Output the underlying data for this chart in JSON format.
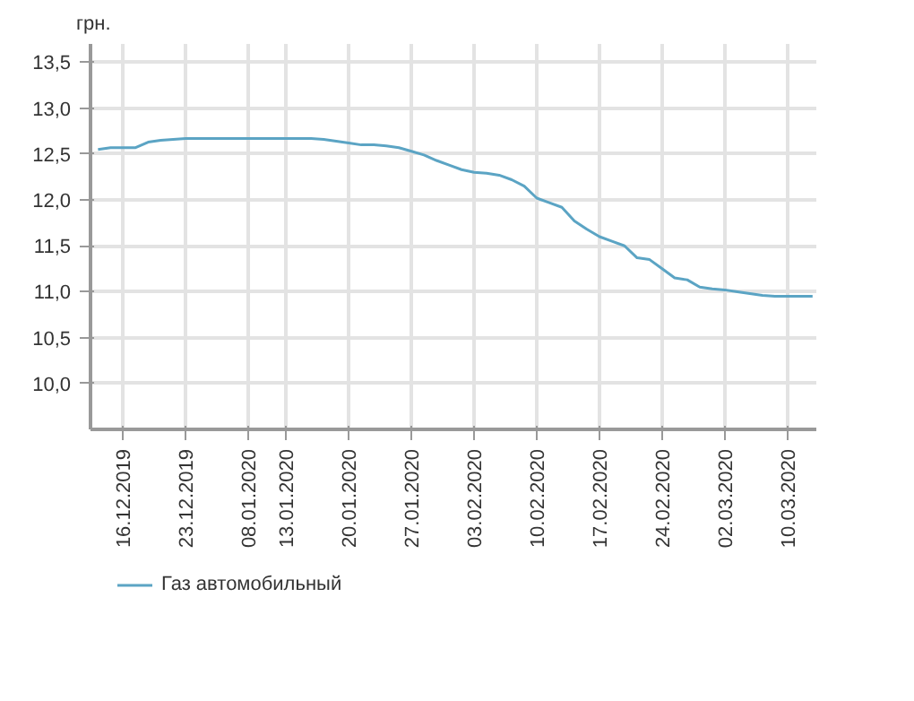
{
  "chart_data": {
    "type": "line",
    "ylabel": "грн.",
    "categories": [
      null,
      null,
      "16.12.2019",
      null,
      null,
      null,
      null,
      "23.12.2019",
      null,
      null,
      null,
      null,
      "08.01.2020",
      null,
      null,
      "13.01.2020",
      null,
      null,
      null,
      null,
      "20.01.2020",
      null,
      null,
      null,
      null,
      "27.01.2020",
      null,
      null,
      null,
      null,
      "03.02.2020",
      null,
      null,
      null,
      null,
      "10.02.2020",
      null,
      null,
      null,
      null,
      "17.02.2020",
      null,
      null,
      null,
      null,
      "24.02.2020",
      null,
      null,
      null,
      null,
      "02.03.2020",
      null,
      null,
      null,
      null,
      "10.03.2020",
      null,
      null
    ],
    "series": [
      {
        "name": "Газ автомобильный",
        "color": "#5ba4c4",
        "values": [
          12.55,
          12.57,
          12.57,
          12.57,
          12.63,
          12.65,
          12.66,
          12.67,
          12.67,
          12.67,
          12.67,
          12.67,
          12.67,
          12.67,
          12.67,
          12.67,
          12.67,
          12.67,
          12.66,
          12.64,
          12.62,
          12.6,
          12.6,
          12.59,
          12.57,
          12.53,
          12.49,
          12.43,
          12.38,
          12.33,
          12.3,
          12.29,
          12.27,
          12.22,
          12.15,
          12.02,
          11.97,
          11.92,
          11.77,
          11.68,
          11.6,
          11.55,
          11.5,
          11.37,
          11.35,
          11.25,
          11.15,
          11.13,
          11.05,
          11.03,
          11.02,
          11.0,
          10.98,
          10.96,
          10.95,
          10.95,
          10.95,
          10.95
        ]
      }
    ],
    "ylim": [
      9.5,
      13.7
    ],
    "yticks": [
      {
        "value": 10,
        "label": "10,0"
      },
      {
        "value": 10.5,
        "label": "10,5"
      },
      {
        "value": 11,
        "label": "11,0"
      },
      {
        "value": 11.5,
        "label": "11,5"
      },
      {
        "value": 12,
        "label": "12,0"
      },
      {
        "value": 12.5,
        "label": "12,5"
      },
      {
        "value": 13,
        "label": "13,0"
      },
      {
        "value": 13.5,
        "label": "13,5"
      }
    ],
    "grid": true,
    "legend": "bottom",
    "line_style": "solid"
  }
}
